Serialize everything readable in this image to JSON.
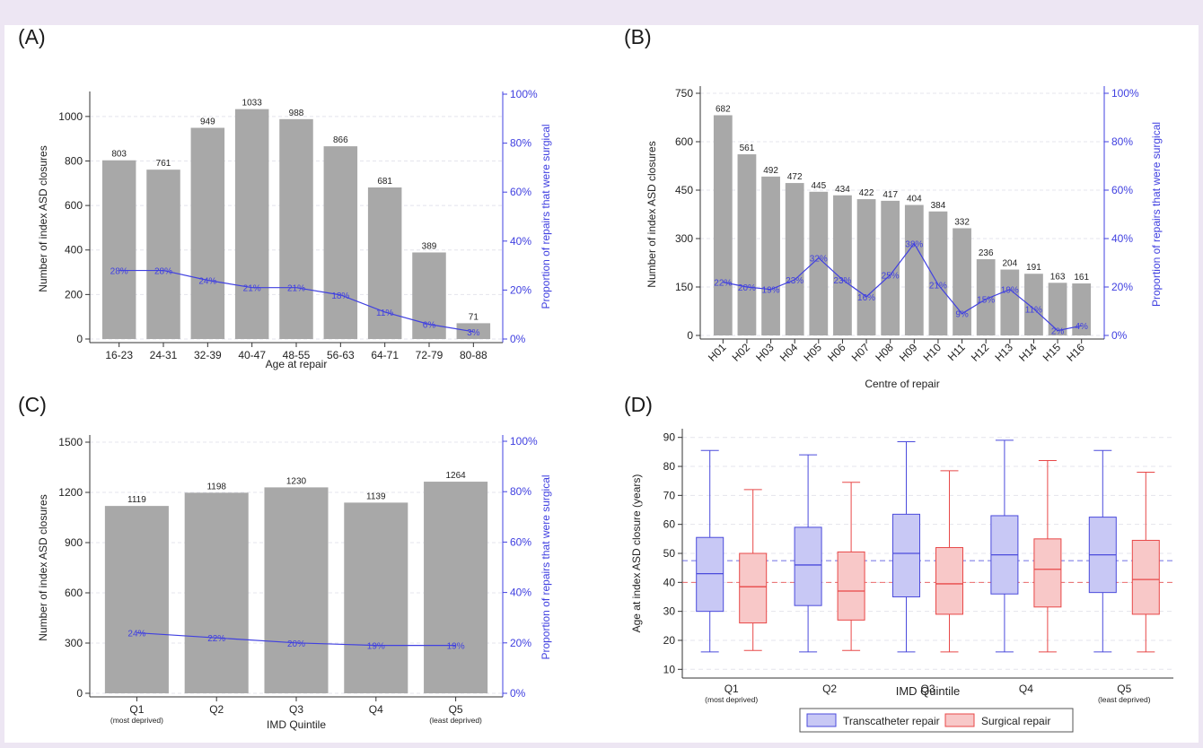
{
  "chart_data": [
    {
      "id": "A",
      "panel_label": "(A)",
      "type": "bar",
      "secondary_type": "line",
      "xlabel": "Age at repair",
      "ylabel": "Number of index ASD closures",
      "y2label": "Proportion of repairs that were surgical",
      "ylim": [
        0,
        1080
      ],
      "yticks": [
        0,
        200,
        400,
        600,
        800,
        1000
      ],
      "y2ticks": [
        "0%",
        "20%",
        "40%",
        "60%",
        "80%",
        "100%"
      ],
      "categories": [
        "16-23",
        "24-31",
        "32-39",
        "40-47",
        "48-55",
        "56-63",
        "64-71",
        "72-79",
        "80-88"
      ],
      "values": [
        803,
        761,
        949,
        1033,
        988,
        866,
        681,
        389,
        71
      ],
      "value_labels": [
        "803",
        "761",
        "949",
        "1033",
        "988",
        "866",
        "681",
        "389",
        "71"
      ],
      "proportion_surgical": [
        28,
        28,
        24,
        21,
        21,
        18,
        11,
        6,
        3
      ],
      "proportion_labels": [
        "28%",
        "28%",
        "24%",
        "21%",
        "21%",
        "18%",
        "11%",
        "6%",
        "3%"
      ],
      "grid": true
    },
    {
      "id": "B",
      "panel_label": "(B)",
      "type": "bar",
      "secondary_type": "line",
      "xlabel": "Centre of repair",
      "ylabel": "Number of index ASD closures",
      "y2label": "Proportion of repairs that were surgical",
      "ylim": [
        0,
        750
      ],
      "yticks": [
        0,
        150,
        300,
        450,
        600,
        750
      ],
      "y2ticks": [
        "0%",
        "20%",
        "40%",
        "60%",
        "80%",
        "100%"
      ],
      "categories": [
        "H01",
        "H02",
        "H03",
        "H04",
        "H05",
        "H06",
        "H07",
        "H08",
        "H09",
        "H10",
        "H11",
        "H12",
        "H13",
        "H14",
        "H15",
        "H16"
      ],
      "values": [
        682,
        561,
        492,
        472,
        445,
        434,
        422,
        417,
        404,
        384,
        332,
        236,
        204,
        191,
        163,
        161
      ],
      "value_labels": [
        "682",
        "561",
        "492",
        "472",
        "445",
        "434",
        "422",
        "417",
        "404",
        "384",
        "332",
        "236",
        "204",
        "191",
        "163",
        "161"
      ],
      "proportion_surgical": [
        22,
        20,
        19,
        23,
        32,
        23,
        16,
        25,
        38,
        21,
        9,
        15,
        19,
        11,
        2,
        4
      ],
      "proportion_labels": [
        "22%",
        "20%",
        "19%",
        "23%",
        "32%",
        "23%",
        "16%",
        "25%",
        "38%",
        "21%",
        "9%",
        "15%",
        "19%",
        "11%",
        "2%",
        "4%"
      ],
      "grid": true
    },
    {
      "id": "C",
      "panel_label": "(C)",
      "type": "bar",
      "secondary_type": "line",
      "xlabel": "IMD Quintile",
      "ylabel": "Number of index ASD closures",
      "y2label": "Proportion of repairs that were surgical",
      "ylim": [
        0,
        1500
      ],
      "yticks": [
        0,
        300,
        600,
        900,
        1200,
        1500
      ],
      "y2ticks": [
        "0%",
        "20%",
        "40%",
        "60%",
        "80%",
        "100%"
      ],
      "categories": [
        "Q1",
        "Q2",
        "Q3",
        "Q4",
        "Q5"
      ],
      "category_sublabels": [
        "(most deprived)",
        "",
        "",
        "",
        "(least deprived)"
      ],
      "values": [
        1119,
        1198,
        1230,
        1139,
        1264
      ],
      "value_labels": [
        "1119",
        "1198",
        "1230",
        "1139",
        "1264"
      ],
      "proportion_surgical": [
        24,
        22,
        20,
        19,
        19
      ],
      "proportion_labels": [
        "24%",
        "22%",
        "20%",
        "19%",
        "19%"
      ],
      "grid": true
    },
    {
      "id": "D",
      "panel_label": "(D)",
      "type": "box",
      "xlabel": "IMD Quintile",
      "ylabel": "Age at index ASD closure (years)",
      "ylim": [
        7,
        93
      ],
      "yticks": [
        10,
        20,
        30,
        40,
        50,
        60,
        70,
        80,
        90
      ],
      "categories": [
        "Q1",
        "Q2",
        "Q3",
        "Q4",
        "Q5"
      ],
      "category_sublabels": [
        "(most deprived)",
        "",
        "",
        "",
        "(least deprived)"
      ],
      "series": [
        {
          "name": "Transcatheter repair",
          "color": "#4b4bdc",
          "fill": "#c8c8f5",
          "overall_median": 47.5,
          "boxes": [
            {
              "min": 16,
              "q1": 30,
              "median": 43,
              "q3": 55.5,
              "max": 85.5
            },
            {
              "min": 16,
              "q1": 32,
              "median": 46,
              "q3": 59,
              "max": 84
            },
            {
              "min": 16,
              "q1": 35,
              "median": 50,
              "q3": 63.5,
              "max": 88.5
            },
            {
              "min": 16,
              "q1": 36,
              "median": 49.5,
              "q3": 63,
              "max": 89
            },
            {
              "min": 16,
              "q1": 36.5,
              "median": 49.5,
              "q3": 62.5,
              "max": 85.5
            }
          ]
        },
        {
          "name": "Surgical repair",
          "color": "#e84848",
          "fill": "#f8c8c8",
          "overall_median": 40,
          "boxes": [
            {
              "min": 16.5,
              "q1": 26,
              "median": 38.5,
              "q3": 50,
              "max": 72
            },
            {
              "min": 16.5,
              "q1": 27,
              "median": 37,
              "q3": 50.5,
              "max": 74.5
            },
            {
              "min": 16,
              "q1": 29,
              "median": 39.5,
              "q3": 52,
              "max": 78.5
            },
            {
              "min": 16,
              "q1": 31.5,
              "median": 44.5,
              "q3": 55,
              "max": 82
            },
            {
              "min": 16,
              "q1": 29,
              "median": 41,
              "q3": 54.5,
              "max": 78
            }
          ]
        }
      ],
      "legend_position": "bottom",
      "grid": true
    }
  ],
  "colors": {
    "bar": "#a8a8a8",
    "secondary": "#4040e0",
    "axis": "#333333",
    "grid": "#e4e4ec"
  }
}
